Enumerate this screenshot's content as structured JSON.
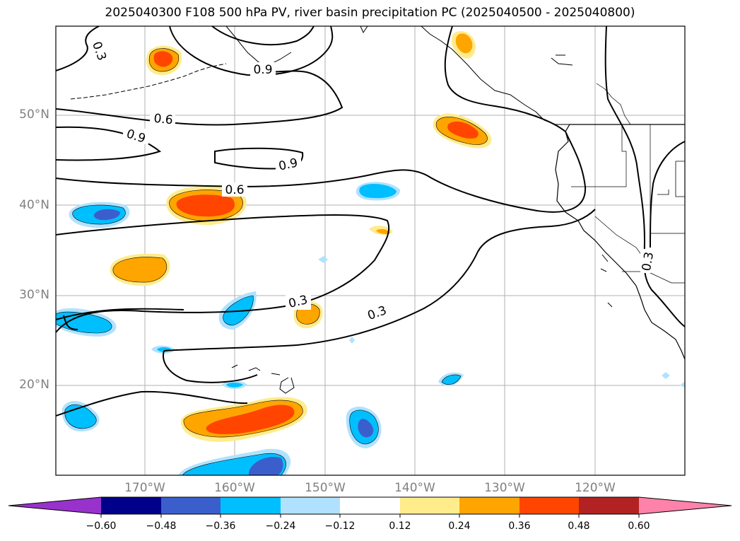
{
  "title": "2025040300 F108 500 hPa PV, river basin precipitation PC (2025040500 - 2025040800)",
  "lat_labels": [
    "50°N",
    "40°N",
    "30°N",
    "20°N"
  ],
  "lon_labels": [
    "170°W",
    "160°W",
    "150°W",
    "140°W",
    "130°W",
    "120°W"
  ],
  "contour_labels": [
    "0.3",
    "0.9",
    "0.6",
    "0.9",
    "0.9",
    "0.6",
    "0.3",
    "0.3",
    "0.3"
  ],
  "colorbar": {
    "ticks": [
      "−0.60",
      "−0.48",
      "−0.36",
      "−0.24",
      "−0.12",
      "0.12",
      "0.24",
      "0.36",
      "0.48",
      "0.60"
    ],
    "colors": [
      "#9932cc",
      "#00008b",
      "#3a5fcd",
      "#00bfff",
      "#b0e2ff",
      "#ffffff",
      "#ffec8b",
      "#ffa500",
      "#ff4500",
      "#b22222",
      "#ff82ab"
    ]
  },
  "colors": {
    "gridline": "#b0b0b0",
    "contour": "#000000",
    "label_gray": "#808080"
  }
}
